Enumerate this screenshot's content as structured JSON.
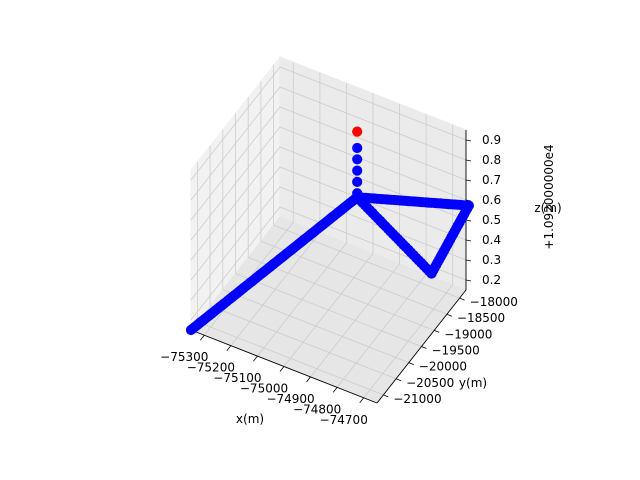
{
  "chart_data": {
    "type": "scatter",
    "projection": "3d",
    "xlabel": "x(m)",
    "ylabel": "y(m)",
    "zlabel": "z(m)",
    "z_offset_label": "+1.092000000e4",
    "x_ticks": [
      "−75300",
      "−75200",
      "−75100",
      "−75000",
      "−74900",
      "−74800",
      "−74700"
    ],
    "y_ticks": [
      "−21000",
      "−20500",
      "−20000",
      "−19500",
      "−19000",
      "−18500",
      "−18000"
    ],
    "z_ticks": [
      "0.2",
      "0.3",
      "0.4",
      "0.5",
      "0.6",
      "0.7",
      "0.8",
      "0.9"
    ],
    "xlim": [
      -75350,
      -74700
    ],
    "ylim": [
      -21000,
      -17900
    ],
    "zlim": [
      0.15,
      0.93
    ],
    "grid": true,
    "series": [
      {
        "color": "#ff0000",
        "points": [
          {
            "x": -75000,
            "y": -18700,
            "z": 0.9
          }
        ]
      },
      {
        "color": "#0000ff",
        "segments": [
          {
            "from": {
              "x": -75000,
              "y": -18700,
              "z": 0.82
            },
            "to": {
              "x": -75000,
              "y": -18700,
              "z": 0.6
            },
            "count": 5
          },
          {
            "from": {
              "x": -75000,
              "y": -18700,
              "z": 0.58
            },
            "to": {
              "x": -75350,
              "y": -21000,
              "z": 0.15
            },
            "count": 95
          },
          {
            "from": {
              "x": -75000,
              "y": -18700,
              "z": 0.58
            },
            "to": {
              "x": -74650,
              "y": -18300,
              "z": 0.66
            },
            "count": 40
          },
          {
            "from": {
              "x": -74650,
              "y": -18300,
              "z": 0.66
            },
            "to": {
              "x": -74680,
              "y": -19300,
              "z": 0.49
            },
            "count": 25
          },
          {
            "from": {
              "x": -74680,
              "y": -19300,
              "z": 0.49
            },
            "to": {
              "x": -75000,
              "y": -18700,
              "z": 0.58
            },
            "count": 30
          }
        ]
      }
    ]
  }
}
